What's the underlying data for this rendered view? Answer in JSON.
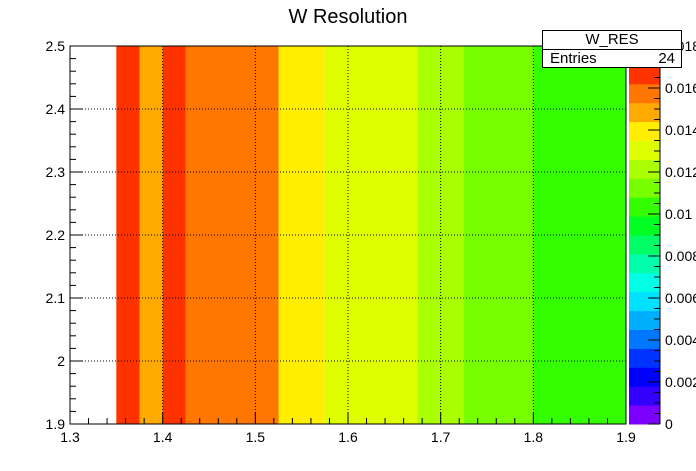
{
  "chart_data": {
    "type": "heatmap",
    "title": "W Resolution",
    "xlabel": "",
    "ylabel": "",
    "xlim": [
      1.3,
      1.9
    ],
    "ylim": [
      1.9,
      2.5
    ],
    "zlim": [
      0,
      0.018
    ],
    "x_ticks": [
      "1.3",
      "1.4",
      "1.5",
      "1.6",
      "1.7",
      "1.8",
      "1.9"
    ],
    "y_ticks": [
      "1.9",
      "2",
      "2.1",
      "2.2",
      "2.3",
      "2.4",
      "2.5"
    ],
    "z_ticks": [
      "0",
      "0.002",
      "0.004",
      "0.006",
      "0.008",
      "0.01",
      "0.012",
      "0.014",
      "0.016",
      "0.018"
    ],
    "grid": true,
    "bins": [
      {
        "x0": 1.35,
        "x1": 1.375,
        "value": 0.0165
      },
      {
        "x0": 1.375,
        "x1": 1.4,
        "value": 0.0145
      },
      {
        "x0": 1.4,
        "x1": 1.425,
        "value": 0.0165
      },
      {
        "x0": 1.425,
        "x1": 1.525,
        "value": 0.0155
      },
      {
        "x0": 1.525,
        "x1": 1.575,
        "value": 0.0138
      },
      {
        "x0": 1.575,
        "x1": 1.675,
        "value": 0.0131
      },
      {
        "x0": 1.675,
        "x1": 1.725,
        "value": 0.0124
      },
      {
        "x0": 1.725,
        "x1": 1.8,
        "value": 0.0115
      },
      {
        "x0": 1.8,
        "x1": 1.9,
        "value": 0.0105
      }
    ],
    "palette": [
      "#7b00ff",
      "#3300ff",
      "#0000ff",
      "#0033ff",
      "#0077ff",
      "#00b0ff",
      "#00e0ff",
      "#00ffe6",
      "#00ffaa",
      "#00ff66",
      "#00ff22",
      "#33ff00",
      "#77ff00",
      "#aaff00",
      "#ddff00",
      "#ffee00",
      "#ffaa00",
      "#ff7700",
      "#ff3300",
      "#ff0000"
    ]
  },
  "stats": {
    "name": "W_RES",
    "entries_label": "Entries",
    "entries_value": "24"
  }
}
